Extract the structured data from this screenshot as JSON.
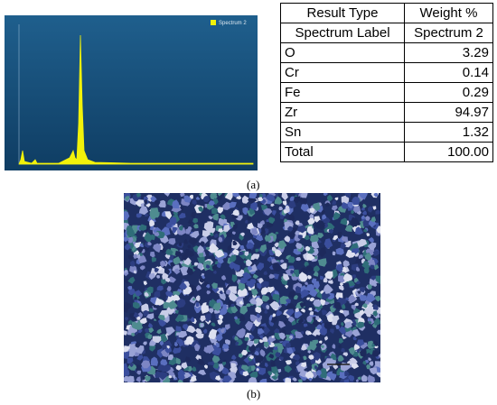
{
  "figure": {
    "spectrum_legend": "Spectrum 2",
    "table": {
      "header": [
        "Result Type",
        "Weight %"
      ],
      "rows": [
        [
          "Spectrum Label",
          "Spectrum 2"
        ],
        [
          "O",
          "3.29"
        ],
        [
          "Cr",
          "0.14"
        ],
        [
          "Fe",
          "0.29"
        ],
        [
          "Zr",
          "94.97"
        ],
        [
          "Sn",
          "1.32"
        ],
        [
          "Total",
          "100.00"
        ]
      ]
    },
    "caption_a": "(a)",
    "caption_b": "(b)"
  }
}
